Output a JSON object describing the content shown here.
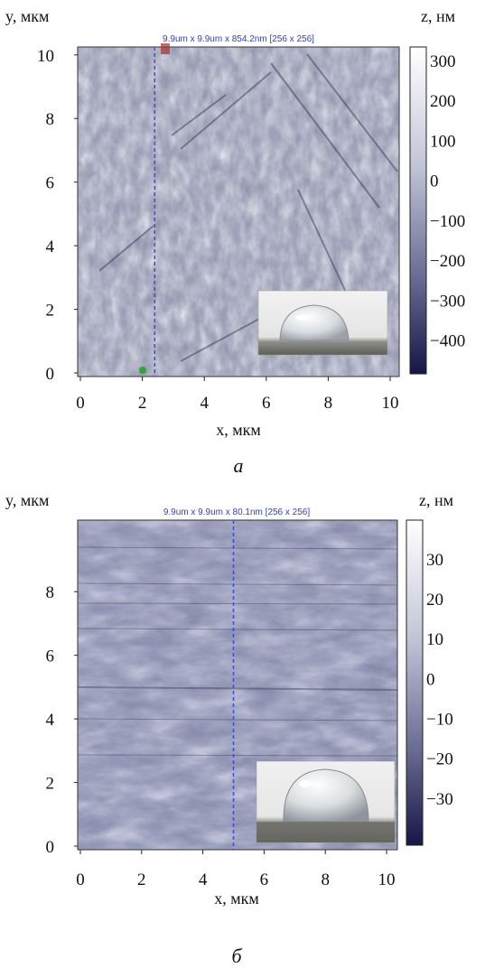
{
  "panels": [
    {
      "id": "a",
      "letter": "a",
      "scan_caption": "9.9um x 9.9um x 854.2nm [256 x 256]",
      "y_axis_label": "y, мкм",
      "x_axis_label": "x, мкм",
      "z_axis_label": "z, нм",
      "x_ticks": [
        "0",
        "2",
        "4",
        "6",
        "8",
        "10"
      ],
      "y_ticks": [
        "0",
        "2",
        "4",
        "6",
        "8",
        "10"
      ],
      "z_ticks": [
        "300",
        "200",
        "100",
        "0",
        "−100",
        "−200",
        "−300",
        "−400"
      ],
      "cut_line_x": 2.4,
      "inset": "water-droplet-photo"
    },
    {
      "id": "b",
      "letter": "б",
      "scan_caption": "9.9um x 9.9um x 80.1nm [256 x 256]",
      "y_axis_label": "y, мкм",
      "x_axis_label": "x, мкм",
      "z_axis_label": "z, нм",
      "x_ticks": [
        "0",
        "2",
        "4",
        "6",
        "8",
        "10"
      ],
      "y_ticks": [
        "0",
        "2",
        "4",
        "6",
        "8"
      ],
      "z_ticks": [
        "30",
        "20",
        "10",
        "0",
        "−10",
        "−20",
        "−30"
      ],
      "cut_line_x": 5.0,
      "inset": "water-droplet-photo"
    }
  ],
  "chart_data": [
    {
      "type": "heatmap",
      "title": "9.9um x 9.9um x 854.2nm [256 x 256]",
      "xlabel": "x, мкм",
      "ylabel": "y, мкм",
      "zlabel": "z, нм",
      "xlim": [
        0,
        10
      ],
      "ylim": [
        0,
        10
      ],
      "zlim": [
        -480,
        320
      ],
      "x_ticks": [
        0,
        2,
        4,
        6,
        8,
        10
      ],
      "y_ticks": [
        0,
        2,
        4,
        6,
        8,
        10
      ],
      "z_ticks": [
        300,
        200,
        100,
        0,
        -100,
        -200,
        -300,
        -400
      ],
      "colormap": [
        "#1a1a4a",
        "#5a5f86",
        "#a3a7c2",
        "#ffffff"
      ],
      "legend": "right"
    },
    {
      "type": "heatmap",
      "title": "9.9um x 9.9um x 80.1nm [256 x 256]",
      "xlabel": "x, мкм",
      "ylabel": "y, мкм",
      "zlabel": "z, нм",
      "xlim": [
        0,
        10
      ],
      "ylim": [
        0,
        10
      ],
      "zlim": [
        -40,
        37
      ],
      "x_ticks": [
        0,
        2,
        4,
        6,
        8,
        10
      ],
      "y_ticks": [
        0,
        2,
        4,
        6,
        8
      ],
      "z_ticks": [
        30,
        20,
        10,
        0,
        -10,
        -20,
        -30
      ],
      "colormap": [
        "#1a1a4a",
        "#5a5f86",
        "#a3a7c2",
        "#ffffff"
      ],
      "legend": "right"
    }
  ]
}
